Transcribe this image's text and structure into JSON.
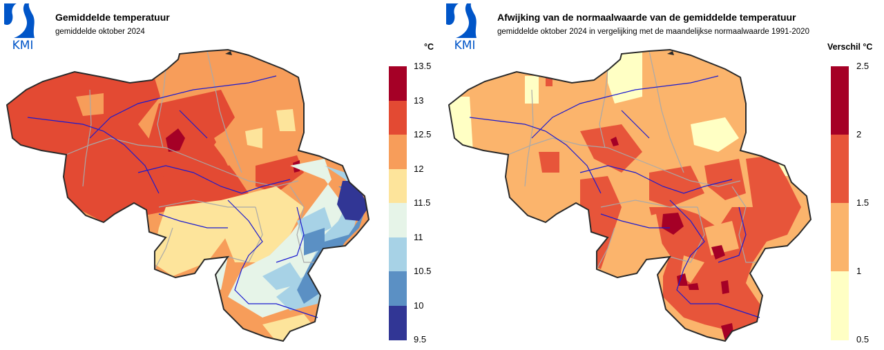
{
  "logo_text": "KMI",
  "colors": {
    "logo_blue": "#0055c8",
    "border": "#2a2a2a",
    "province_borders": "#a9a9a9",
    "rivers": "#1a1ad0"
  },
  "panels": [
    {
      "title": "Gemiddelde temperatuur",
      "subtitle": "gemiddelde oktober 2024",
      "legend": {
        "unit": "°C",
        "ticks": [
          "13.5",
          "13",
          "12.5",
          "12",
          "11.5",
          "11",
          "10.5",
          "10",
          "9.5"
        ],
        "colors": [
          "#a50026",
          "#e34a33",
          "#f79d5a",
          "#fde49b",
          "#e6f4e8",
          "#a7d2e6",
          "#5b90c4",
          "#313695"
        ]
      }
    },
    {
      "title": "Afwijking van de normaalwaarde van de gemiddelde temperatuur",
      "subtitle": "gemiddelde oktober 2024 in vergelijking met de maandelijkse normaalwaarde 1991-2020",
      "legend": {
        "unit": "Verschil °C",
        "ticks": [
          "2.5",
          "2",
          "1.5",
          "1",
          "0.5"
        ],
        "colors": [
          "#a50026",
          "#e7553a",
          "#fbb46c",
          "#ffffc4"
        ]
      }
    }
  ]
}
